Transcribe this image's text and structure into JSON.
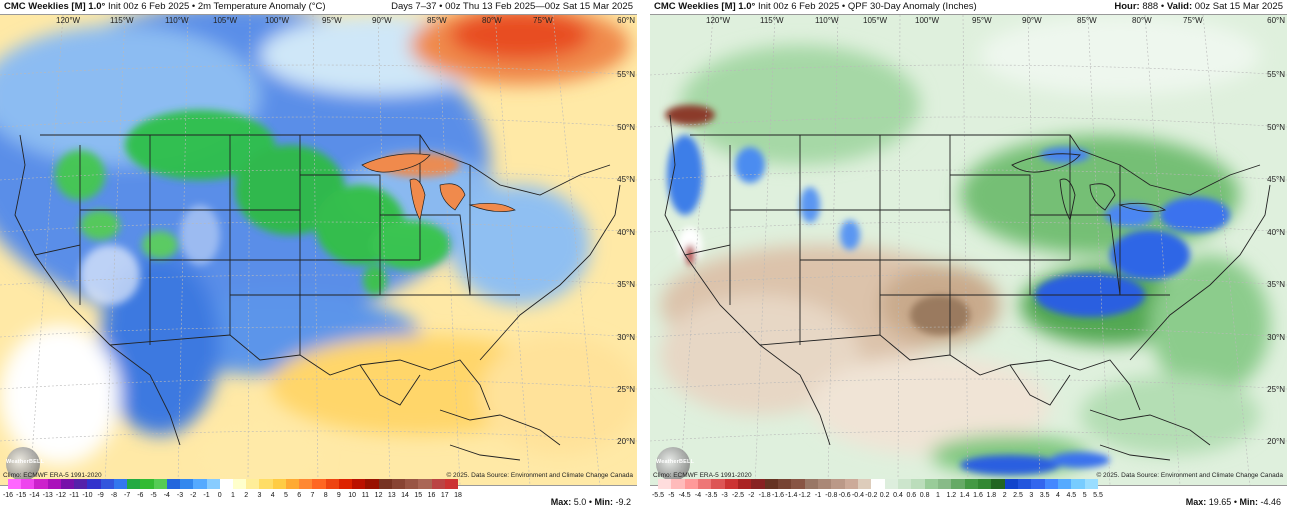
{
  "left": {
    "model": "CMC Weeklies [M] 1.0°",
    "subtitle": "Init 00z 6 Feb 2025 • 2m Temperature Anomaly (°C)",
    "right_header": "Days 7–37 • 00z Thu 13 Feb 2025—00z Sat 15 Mar 2025",
    "lon_labels": [
      "120°W",
      "115°W",
      "110°W",
      "105°W",
      "100°W",
      "95°W",
      "90°W",
      "85°W",
      "80°W",
      "75°W"
    ],
    "lat_labels": [
      "60°N",
      "55°N",
      "50°N",
      "45°N",
      "40°N",
      "35°N",
      "30°N",
      "25°N",
      "20°N"
    ],
    "climo": "Climo: ECMWF ERA-5 1991-2020",
    "copyright": "© 2025. Data Source: Environment and Climate Change Canada",
    "logo": "WeatherBELL",
    "colorbar_ticks": [
      "-16",
      "-15",
      "-14",
      "-13",
      "-12",
      "-11",
      "-10",
      "-9",
      "-8",
      "-7",
      "-6",
      "-5",
      "-4",
      "-3",
      "-2",
      "-1",
      "0",
      "1",
      "2",
      "3",
      "4",
      "5",
      "6",
      "7",
      "8",
      "9",
      "10",
      "11",
      "12",
      "13",
      "14",
      "15",
      "16",
      "17",
      "18"
    ],
    "colorbar_colors": [
      "#ff66ff",
      "#ee44ee",
      "#cc22cc",
      "#aa11bb",
      "#7711aa",
      "#5522aa",
      "#3333cc",
      "#3355dd",
      "#3377ee",
      "#22aa44",
      "#33bb33",
      "#55cc55",
      "#2266dd",
      "#3388ee",
      "#55aaff",
      "#88ccff",
      "#ffffff",
      "#ffffcc",
      "#ffee99",
      "#ffdd66",
      "#ffcc44",
      "#ffaa33",
      "#ff8833",
      "#ff6622",
      "#ee4411",
      "#dd2200",
      "#bb1100",
      "#991100",
      "#773322",
      "#884433",
      "#995544",
      "#aa6655",
      "#bb4444",
      "#cc3333"
    ],
    "max_label": "Max:",
    "max_value": "5.0",
    "min_label": "Min:",
    "min_value": "-9.2"
  },
  "right": {
    "model": "CMC Weeklies [M] 1.0°",
    "subtitle": "Init 00z 6 Feb 2025 • QPF 30-Day Anomaly (Inches)",
    "hour_label": "Hour:",
    "hour_value": "888",
    "valid_label": "Valid:",
    "valid_value": "00z Sat 15 Mar 2025",
    "lon_labels": [
      "120°W",
      "115°W",
      "110°W",
      "105°W",
      "100°W",
      "95°W",
      "90°W",
      "85°W",
      "80°W",
      "75°W"
    ],
    "lat_labels": [
      "60°N",
      "55°N",
      "50°N",
      "45°N",
      "40°N",
      "35°N",
      "30°N",
      "25°N",
      "20°N"
    ],
    "climo": "Climo: ECMWF ERA-5 1991-2020",
    "copyright": "© 2025. Data Source: Environment and Climate Change Canada",
    "logo": "WeatherBELL",
    "colorbar_ticks": [
      "-5.5",
      "-5",
      "-4.5",
      "-4",
      "-3.5",
      "-3",
      "-2.5",
      "-2",
      "-1.8",
      "-1.6",
      "-1.4",
      "-1.2",
      "-1",
      "-0.8",
      "-0.6",
      "-0.4",
      "-0.2",
      "0.2",
      "0.4",
      "0.6",
      "0.8",
      "1",
      "1.2",
      "1.4",
      "1.6",
      "1.8",
      "2",
      "2.5",
      "3",
      "3.5",
      "4",
      "4.5",
      "5",
      "5.5"
    ],
    "colorbar_colors": [
      "#ffdddd",
      "#ffbbbb",
      "#ff9999",
      "#ee7777",
      "#dd5555",
      "#cc3333",
      "#aa2222",
      "#882222",
      "#663322",
      "#774433",
      "#885544",
      "#997766",
      "#aa8877",
      "#bb9988",
      "#ccaa99",
      "#ddccbb",
      "#ffffff",
      "#ddeedd",
      "#cce5cc",
      "#bbddbb",
      "#99cc99",
      "#88bb88",
      "#66aa66",
      "#449944",
      "#338833",
      "#226622",
      "#1144cc",
      "#2255dd",
      "#3366ee",
      "#4488ff",
      "#55aaff",
      "#77ccff",
      "#99ddff"
    ],
    "max_label": "Max:",
    "max_value": "19.65",
    "min_label": "Min:",
    "min_value": "-4.46"
  }
}
